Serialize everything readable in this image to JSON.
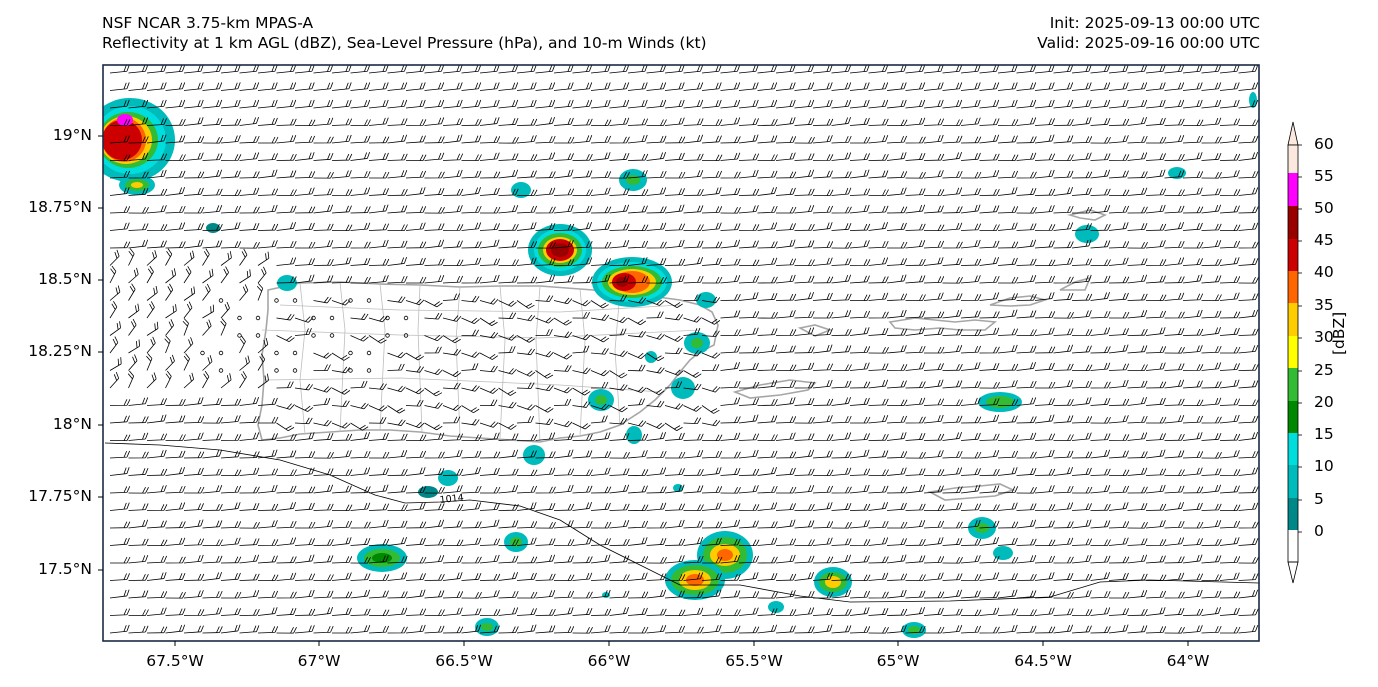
{
  "header": {
    "left_line1": "NSF NCAR 3.75-km MPAS-A",
    "left_line2": "Reflectivity at 1 km AGL (dBZ), Sea-Level Pressure (hPa), and 10-m Winds (kt)",
    "right_line1": "Init: 2025-09-13 00:00 UTC",
    "right_line2": "Valid: 2025-09-16 00:00 UTC"
  },
  "axes": {
    "lat_labels": [
      "19°N",
      "18.75°N",
      "18.5°N",
      "18.25°N",
      "18°N",
      "17.75°N",
      "17.5°N"
    ],
    "lon_labels": [
      "67.5°W",
      "67°W",
      "66.5°W",
      "66°W",
      "65.5°W",
      "65°W",
      "64.5°W",
      "64°W"
    ]
  },
  "colorbar": {
    "title": "[dBZ]",
    "ticks": [
      "60",
      "55",
      "50",
      "45",
      "40",
      "35",
      "30",
      "25",
      "20",
      "15",
      "10",
      "5",
      "0"
    ],
    "colors": [
      "#fde8e0",
      "#ff00ff",
      "#990000",
      "#cc0000",
      "#ff6600",
      "#ffcc00",
      "#ffff00",
      "#33bb33",
      "#008800",
      "#00dddd",
      "#00bbbb",
      "#008888",
      "#ffffff"
    ]
  },
  "contour": {
    "label": "1014"
  },
  "colors": {
    "coast": "#a6a6a6",
    "frame": "#1a2a44",
    "barb": "#000000"
  }
}
